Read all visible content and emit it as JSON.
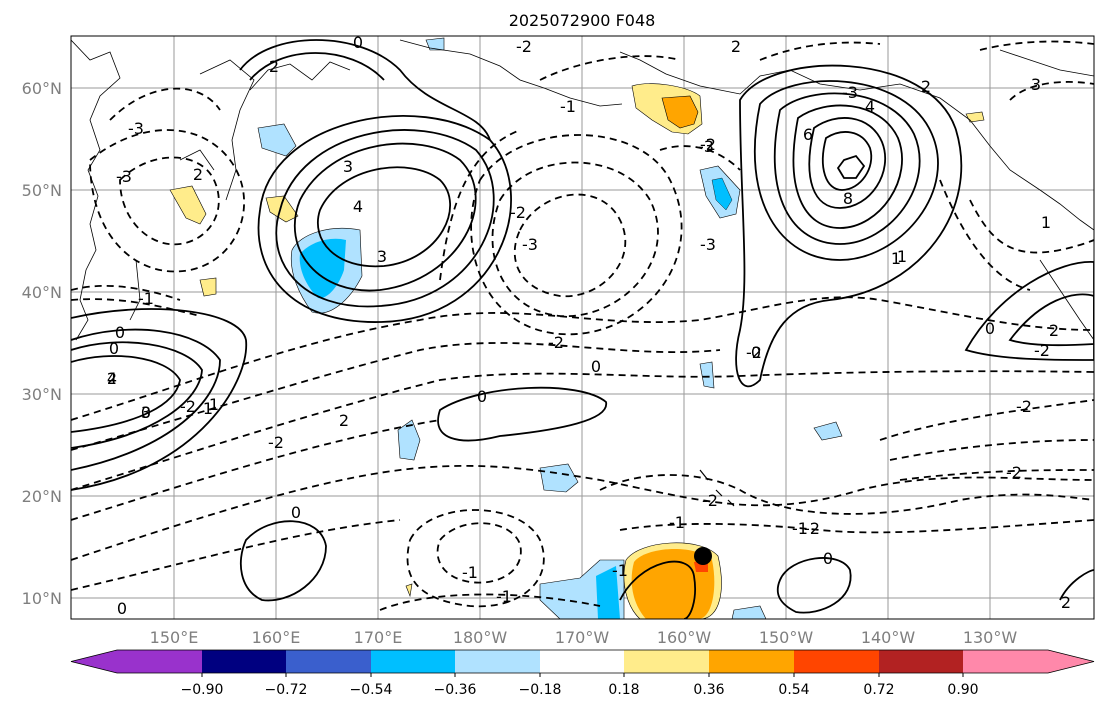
{
  "title": "2025072900 F048",
  "map": {
    "lat_labels": [
      "60°N",
      "50°N",
      "40°N",
      "30°N",
      "20°N",
      "10°N"
    ],
    "lon_labels": [
      "150°E",
      "160°E",
      "170°E",
      "180°W",
      "170°W",
      "160°W",
      "150°W",
      "140°W",
      "130°W"
    ],
    "contour_labels": [
      "0",
      "2",
      "-2",
      "-3",
      "-1",
      "-2",
      "3",
      "-3",
      "2",
      "-3",
      "-2",
      "-1",
      "-2",
      "2",
      "-3",
      "4",
      "3",
      "-3",
      "2",
      "4",
      "-3",
      "3",
      "6",
      "8",
      "-2",
      "-1",
      "-1",
      "1",
      "1",
      "0",
      "2",
      "4",
      "3",
      "-2",
      "1",
      "2",
      "-2",
      "0",
      "-2",
      "-1",
      "0",
      "0",
      "1",
      "-2",
      "2",
      "-2",
      "0",
      "-1",
      "0",
      "-1",
      "-2",
      "-2",
      "0",
      "0",
      "0",
      "2",
      "1",
      "0"
    ],
    "marker": "black-circle"
  },
  "colorbar": {
    "tick_labels": [
      "−0.90",
      "−0.72",
      "−0.54",
      "−0.36",
      "−0.18",
      "0.18",
      "0.36",
      "0.54",
      "0.72",
      "0.90"
    ],
    "colors": [
      "#9932cc",
      "#000080",
      "#3a5fcd",
      "#00bfff",
      "#b0e2ff",
      "#ffffff",
      "#ffec8b",
      "#ffa500",
      "#ff4500",
      "#b22222",
      "#ff88aa"
    ]
  },
  "colors": {
    "land_outline": "#000000",
    "grid": "#9a9a9a",
    "contour": "#000000"
  }
}
